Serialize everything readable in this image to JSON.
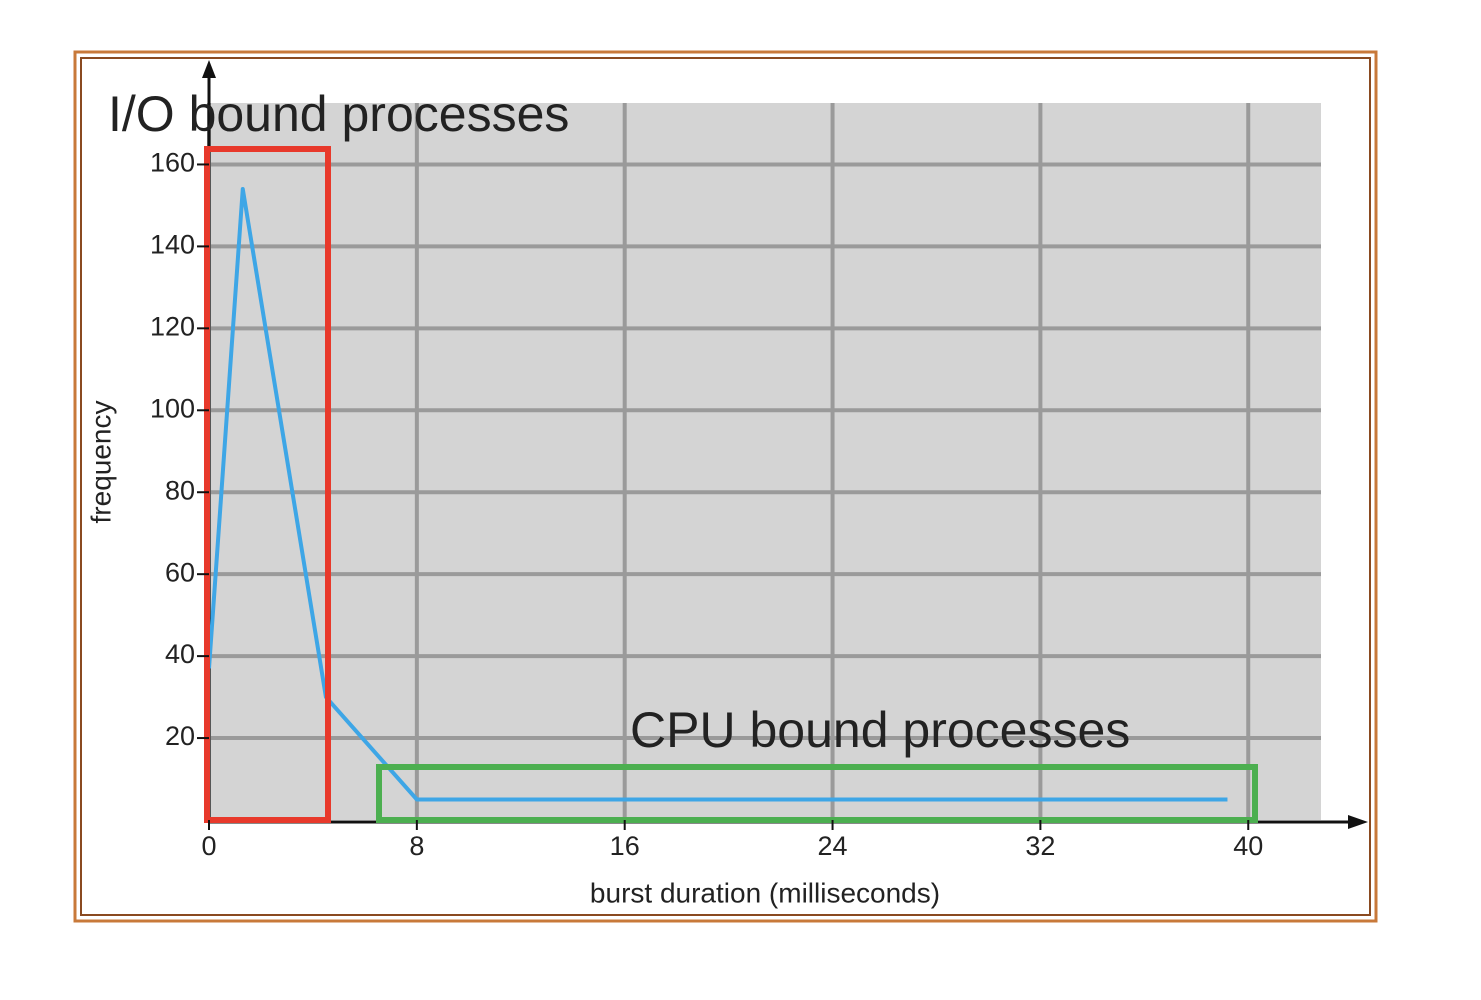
{
  "chart_data": {
    "type": "line",
    "x": [
      0,
      1.3,
      4.5,
      8,
      39.2
    ],
    "values": [
      37,
      154,
      30,
      5,
      5
    ],
    "color": "#3ea6e6",
    "xlim": [
      0,
      42.8
    ],
    "ylim": [
      0,
      175
    ],
    "xticks": [
      0,
      8,
      16,
      24,
      32,
      40
    ],
    "yticks": [
      20,
      40,
      60,
      80,
      100,
      120,
      140,
      160
    ],
    "grid": true,
    "xlabel": "burst duration (milliseconds)",
    "ylabel": "frequency",
    "annotations": [
      {
        "text": "I/O bound processes",
        "color": "#e8392b"
      },
      {
        "text": "CPU bound processes",
        "color": "#4caf50"
      }
    ]
  }
}
